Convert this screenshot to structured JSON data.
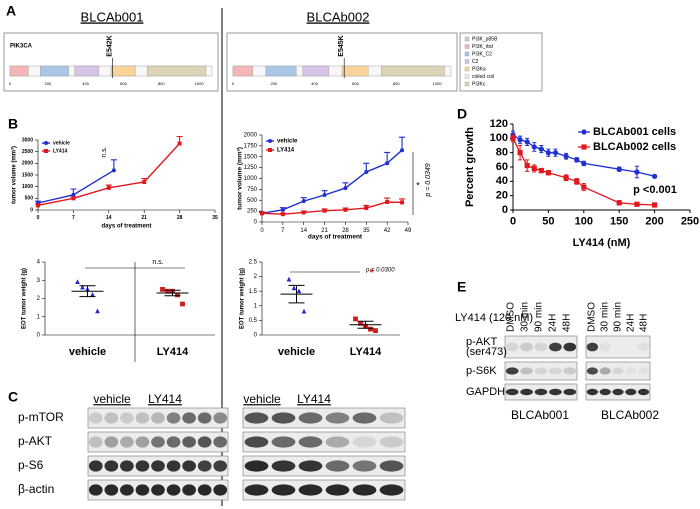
{
  "panel_labels": [
    "A",
    "B",
    "C",
    "D",
    "E"
  ],
  "panel_a": {
    "samples": [
      "BLCAb001",
      "BLCAb002"
    ],
    "gene": "PIK3CA",
    "mutations": [
      "E542K",
      "E545K"
    ],
    "ticks": [
      0,
      200,
      400,
      600,
      800,
      1000
    ],
    "legend": [
      "PI3K_p85B",
      "PI3K_rbd",
      "PI3K_C2",
      "C2",
      "PI3Ka",
      "coiled coil",
      "PI3Kc"
    ]
  },
  "chart_data": [
    {
      "type": "line",
      "x_label": "days of treatment",
      "y_label": "tumor volume (mm³)",
      "xlim": [
        0,
        35
      ],
      "xticks": [
        0,
        7,
        14,
        21,
        28,
        35
      ],
      "ylim": [
        0,
        3000
      ],
      "yticks": [
        0,
        500,
        1000,
        1500,
        2000,
        2500,
        3000
      ],
      "error_bars": "upper",
      "legend": "upper left",
      "series": [
        {
          "name": "vehicle",
          "color": "#1f2fd0",
          "marker": "circle",
          "x": [
            0,
            7,
            15
          ],
          "values": [
            300,
            650,
            1700
          ],
          "errors": [
            80,
            250,
            450
          ]
        },
        {
          "name": "LY414",
          "color": "#e0191f",
          "marker": "square",
          "x": [
            0,
            7,
            14,
            21,
            28
          ],
          "values": [
            200,
            500,
            950,
            1200,
            2850
          ],
          "errors": [
            50,
            60,
            120,
            150,
            300
          ]
        }
      ],
      "annotations": [
        "n.s."
      ]
    },
    {
      "type": "line",
      "x_label": "days of treatment",
      "y_label": "tumor volume (mm³)",
      "xlim": [
        0,
        49
      ],
      "xticks": [
        0,
        7,
        14,
        21,
        28,
        35,
        42,
        49
      ],
      "ylim": [
        0,
        2000
      ],
      "yticks": [
        0,
        250,
        500,
        750,
        1000,
        1250,
        1500,
        1750,
        2000
      ],
      "error_bars": "upper",
      "legend": "upper left",
      "series": [
        {
          "name": "vehicle",
          "color": "#1f2fd0",
          "marker": "circle",
          "x": [
            0,
            7,
            14,
            21,
            28,
            35,
            42,
            47
          ],
          "values": [
            200,
            280,
            480,
            620,
            780,
            1150,
            1350,
            1650
          ],
          "errors": [
            30,
            50,
            80,
            100,
            120,
            200,
            250,
            300
          ]
        },
        {
          "name": "LY414",
          "color": "#e0191f",
          "marker": "square",
          "x": [
            0,
            7,
            14,
            21,
            28,
            35,
            42,
            47
          ],
          "values": [
            200,
            180,
            220,
            260,
            280,
            320,
            460,
            450
          ],
          "errors": [
            20,
            20,
            30,
            40,
            40,
            60,
            90,
            80
          ]
        }
      ],
      "annotations": [
        "*",
        "p = 0.0349"
      ]
    },
    {
      "type": "dot",
      "y_label": "EOT tumor weight (g)",
      "categories": [
        "vehicle",
        "LY414"
      ],
      "ylim": [
        0,
        4
      ],
      "yticks": [
        0,
        1,
        2,
        3,
        4
      ],
      "colors": [
        "#2b2bd6",
        "#d01c1c"
      ],
      "markers": [
        "triangle",
        "square"
      ],
      "points": [
        [
          2.9,
          2.6,
          2.5,
          2.2,
          1.3
        ],
        [
          2.5,
          2.4,
          2.4,
          2.2,
          1.7
        ]
      ],
      "means": [
        2.4,
        2.3
      ],
      "sems": [
        0.3,
        0.15
      ],
      "annotations": [
        "n.s."
      ]
    },
    {
      "type": "dot",
      "y_label": "EOT tumor weight (g)",
      "categories": [
        "vehicle",
        "LY414"
      ],
      "ylim": [
        0,
        2.5
      ],
      "yticks": [
        0,
        0.5,
        1,
        1.5,
        2,
        2.5
      ],
      "colors": [
        "#2b2bd6",
        "#d01c1c"
      ],
      "markers": [
        "triangle",
        "square"
      ],
      "points": [
        [
          1.9,
          1.6,
          1.5,
          0.8
        ],
        [
          0.55,
          0.4,
          0.3,
          0.2,
          0.15
        ]
      ],
      "outliers": [
        [],
        [
          2.2
        ]
      ],
      "means": [
        1.4,
        0.35
      ],
      "sems": [
        0.3,
        0.12
      ],
      "annotations": [
        "p = 0.0300"
      ]
    },
    {
      "type": "line",
      "x_label": "LY414 (nM)",
      "y_label": "Percent growth",
      "xlim": [
        0,
        250
      ],
      "xticks": [
        0,
        50,
        100,
        150,
        200,
        250
      ],
      "ylim": [
        0,
        120
      ],
      "yticks": [
        0,
        20,
        40,
        60,
        80,
        100,
        120
      ],
      "error_bars": "both",
      "legend": "upper right",
      "series": [
        {
          "name": "BLCAb001 cells",
          "color": "#1f2fd0",
          "marker": "circle",
          "x": [
            0,
            10,
            20,
            30,
            40,
            50,
            60,
            75,
            90,
            100,
            150,
            175,
            200
          ],
          "values": [
            105,
            98,
            95,
            88,
            85,
            80,
            80,
            75,
            70,
            65,
            57,
            53,
            47
          ],
          "errors": [
            5,
            5,
            5,
            6,
            5,
            5,
            5,
            4,
            3,
            3,
            3,
            8,
            2
          ]
        },
        {
          "name": "BLCAb002 cells",
          "color": "#e0191f",
          "marker": "square",
          "x": [
            0,
            10,
            20,
            30,
            40,
            50,
            75,
            90,
            100,
            150,
            175,
            200
          ],
          "values": [
            100,
            80,
            62,
            58,
            55,
            52,
            45,
            40,
            32,
            10,
            8,
            7
          ],
          "errors": [
            5,
            10,
            8,
            5,
            3,
            3,
            4,
            4,
            5,
            3,
            2,
            2
          ]
        }
      ],
      "annotations": [
        "p <0.001"
      ]
    }
  ],
  "panel_c": {
    "groups": [
      "vehicle",
      "LY414"
    ],
    "rows": [
      "p-mTOR",
      "p-AKT",
      "p-S6",
      "β-actin"
    ]
  },
  "panel_e": {
    "treatment": "LY414 (120 nM)",
    "lanes": [
      "DMSO",
      "30 min",
      "90 min",
      "24H",
      "48H"
    ],
    "rows": [
      "p-AKT",
      "p-S6K",
      "GAPDH"
    ],
    "row_note": "(ser473)",
    "samples": [
      "BLCAb001",
      "BLCAb002"
    ]
  }
}
